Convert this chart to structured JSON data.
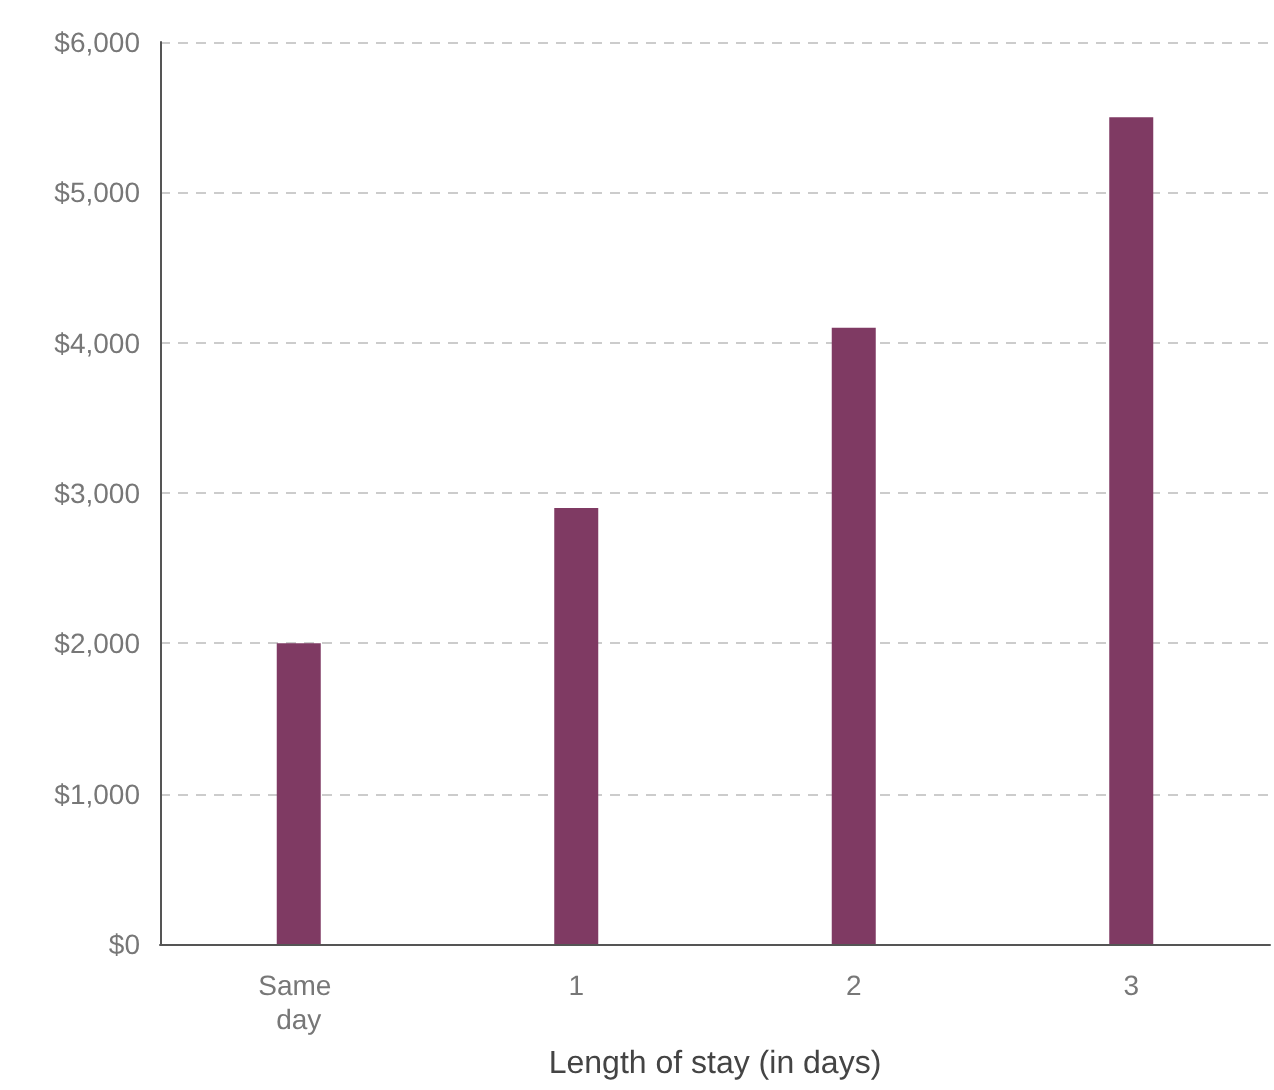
{
  "chart_data": {
    "type": "bar",
    "xlabel": "Length of stay (in days)",
    "categories": [
      "Same day",
      "1",
      "2",
      "3"
    ],
    "values": [
      2000,
      2900,
      4100,
      5500
    ],
    "color": "#7f3a63",
    "ylim": [
      0,
      6000
    ],
    "yticks": [
      {
        "value": 0,
        "label": "$0"
      },
      {
        "value": 1000,
        "label": "$1,000"
      },
      {
        "value": 2000,
        "label": "$2,000"
      },
      {
        "value": 3000,
        "label": "$3,000"
      },
      {
        "value": 4000,
        "label": "$4,000"
      },
      {
        "value": 5000,
        "label": "$5,000"
      },
      {
        "value": 6000,
        "label": "$6,000"
      }
    ],
    "grid": "y"
  }
}
